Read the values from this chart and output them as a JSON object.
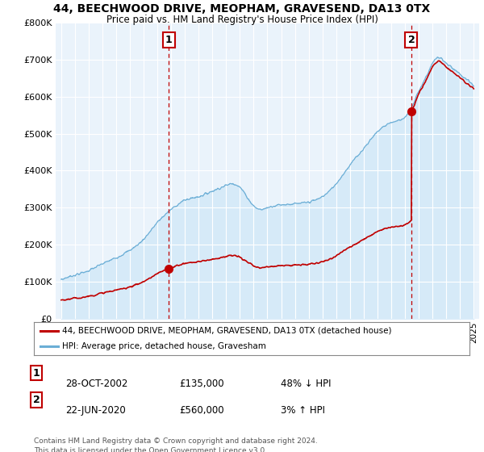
{
  "title_line1": "44, BEECHWOOD DRIVE, MEOPHAM, GRAVESEND, DA13 0TX",
  "title_line2": "Price paid vs. HM Land Registry's House Price Index (HPI)",
  "ylim": [
    0,
    800000
  ],
  "yticks": [
    0,
    100000,
    200000,
    300000,
    400000,
    500000,
    600000,
    700000,
    800000
  ],
  "ytick_labels": [
    "£0",
    "£100K",
    "£200K",
    "£300K",
    "£400K",
    "£500K",
    "£600K",
    "£700K",
    "£800K"
  ],
  "hpi_color": "#6baed6",
  "hpi_fill_color": "#d6eaf8",
  "price_color": "#c00000",
  "marker1_date": 2002.82,
  "marker1_price": 135000,
  "marker2_date": 2020.47,
  "marker2_price": 560000,
  "legend_line1": "44, BEECHWOOD DRIVE, MEOPHAM, GRAVESEND, DA13 0TX (detached house)",
  "legend_line2": "HPI: Average price, detached house, Gravesham",
  "footnote_line1": "Contains HM Land Registry data © Crown copyright and database right 2024.",
  "footnote_line2": "This data is licensed under the Open Government Licence v3.0.",
  "row1_num": "1",
  "row1_date": "28-OCT-2002",
  "row1_price": "£135,000",
  "row1_hpi": "48% ↓ HPI",
  "row2_num": "2",
  "row2_date": "22-JUN-2020",
  "row2_price": "£560,000",
  "row2_hpi": "3% ↑ HPI",
  "background_color": "#ffffff",
  "chart_bg_color": "#eaf3fb",
  "xlim_left": 1994.6,
  "xlim_right": 2025.4
}
